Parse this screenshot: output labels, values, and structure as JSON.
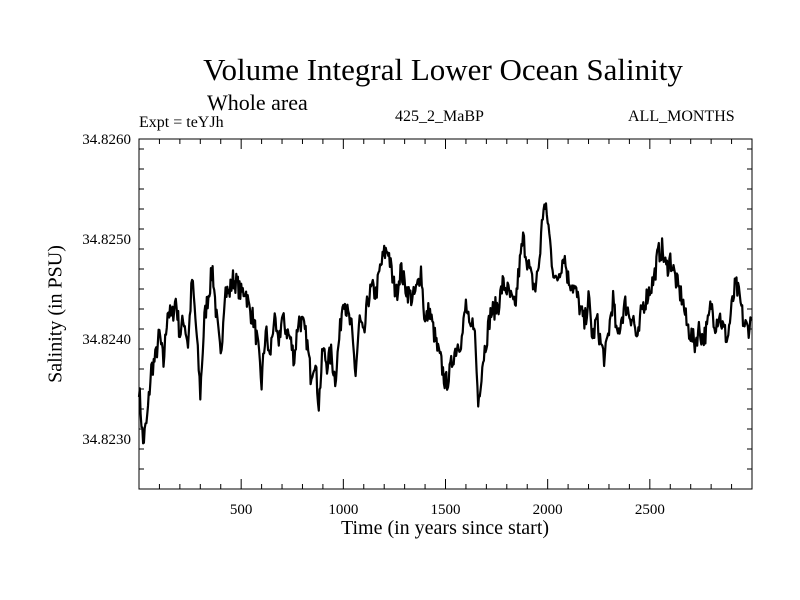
{
  "chart_data": {
    "type": "line",
    "title": "Volume Integral Lower Ocean Salinity",
    "subtitle": "Whole area",
    "annotations": {
      "experiment": "Expt = teYJh",
      "run_label": "425_2_MaBP",
      "season": "ALL_MONTHS"
    },
    "xlabel": "Time (in years since start)",
    "ylabel": "Salinity (in PSU)",
    "xlim": [
      0,
      3000
    ],
    "ylim": [
      34.8225,
      34.826
    ],
    "x_ticks": [
      500,
      1000,
      1500,
      2000,
      2500
    ],
    "x_tick_labels": [
      "500",
      "1000",
      "1500",
      "2000",
      "2500"
    ],
    "x_minor_step": 100,
    "y_ticks": [
      34.823,
      34.824,
      34.825,
      34.826
    ],
    "y_tick_labels": [
      "34.8230",
      "34.8240",
      "34.8250",
      "34.8260"
    ],
    "y_minor_step": 0.0002,
    "grid": false,
    "legend": "none",
    "series": [
      {
        "name": "salinity",
        "color": "#000000",
        "x_start": 0,
        "x_step": 20,
        "values": [
          34.82353,
          34.82295,
          34.8232,
          34.8237,
          34.8238,
          34.82405,
          34.82375,
          34.8243,
          34.8242,
          34.8244,
          34.82405,
          34.8242,
          34.82395,
          34.8246,
          34.8241,
          34.82345,
          34.8242,
          34.82445,
          34.8247,
          34.8242,
          34.8238,
          34.8245,
          34.82445,
          34.8246,
          34.82455,
          34.82445,
          34.8245,
          34.8243,
          34.8242,
          34.82395,
          34.82355,
          34.8241,
          34.8238,
          34.8242,
          34.82395,
          34.8242,
          34.8241,
          34.824,
          34.8238,
          34.8242,
          34.82415,
          34.824,
          34.82365,
          34.8238,
          34.82335,
          34.8239,
          34.82375,
          34.82385,
          34.8236,
          34.824,
          34.82445,
          34.82425,
          34.8241,
          34.82365,
          34.8242,
          34.824,
          34.8244,
          34.8245,
          34.82445,
          34.8247,
          34.82485,
          34.8249,
          34.8246,
          34.82445,
          34.8247,
          34.82455,
          34.82445,
          34.8244,
          34.8245,
          34.8247,
          34.82415,
          34.8243,
          34.8241,
          34.8239,
          34.82375,
          34.82355,
          34.82365,
          34.82385,
          34.82395,
          34.824,
          34.82435,
          34.82405,
          34.8242,
          34.82335,
          34.82375,
          34.824,
          34.82425,
          34.8243,
          34.82435,
          34.82455,
          34.8245,
          34.8244,
          34.8243,
          34.8247,
          34.825,
          34.8248,
          34.8246,
          34.8245,
          34.8248,
          34.82535,
          34.8252,
          34.8248,
          34.82455,
          34.8247,
          34.82485,
          34.8246,
          34.82455,
          34.82445,
          34.8243,
          34.82415,
          34.8244,
          34.824,
          34.8242,
          34.82395,
          34.8238,
          34.8241,
          34.8244,
          34.824,
          34.8242,
          34.82435,
          34.82425,
          34.8242,
          34.82395,
          34.8243,
          34.8244,
          34.8245,
          34.8246,
          34.82485,
          34.8249,
          34.8247,
          34.8248,
          34.82465,
          34.8245,
          34.8244,
          34.82415,
          34.82405,
          34.82395,
          34.8241,
          34.824,
          34.8241,
          34.82435,
          34.82415,
          34.82425,
          34.8241,
          34.824,
          34.8243,
          34.82455,
          34.8244,
          34.82415,
          34.8241,
          34.8242
        ]
      }
    ]
  }
}
